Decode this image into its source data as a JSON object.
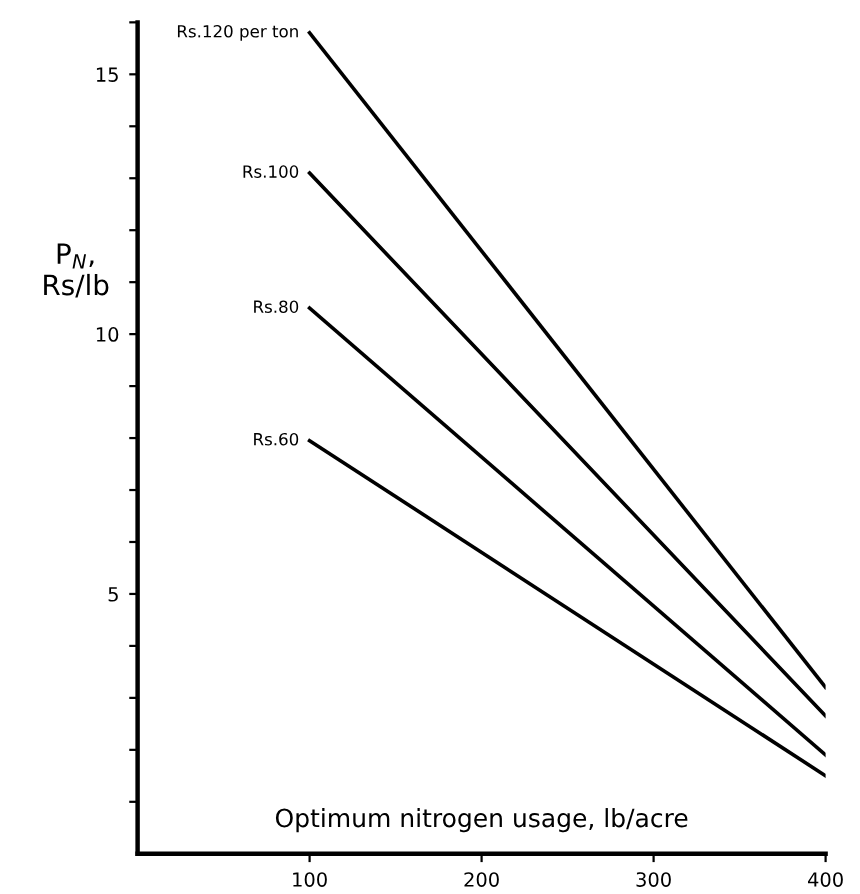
{
  "chart_data": {
    "type": "line",
    "xlabel": "Optimum nitrogen usage, lb/acre",
    "ylabel": "P$_{N}$,\nRs/lb",
    "x": [
      100,
      400
    ],
    "series": [
      {
        "name": "Rs.120 per ton",
        "color": "#000000",
        "values": [
          15.8,
          3.2
        ]
      },
      {
        "name": "Rs.100",
        "color": "#000000",
        "values": [
          13.1,
          2.65
        ]
      },
      {
        "name": "Rs.80",
        "color": "#000000",
        "values": [
          10.5,
          1.9
        ]
      },
      {
        "name": "Rs.60",
        "color": "#000000",
        "values": [
          7.95,
          1.5
        ]
      }
    ],
    "xlim": [
      0,
      400
    ],
    "ylim": [
      0,
      16
    ],
    "xticks": [
      100,
      200,
      300,
      400
    ],
    "yticks": [
      {
        "value": 1,
        "label": null
      },
      {
        "value": 2,
        "label": null
      },
      {
        "value": 3,
        "label": null
      },
      {
        "value": 4,
        "label": null
      },
      5,
      {
        "value": 6,
        "label": null
      },
      {
        "value": 7,
        "label": null
      },
      {
        "value": 8,
        "label": null
      },
      {
        "value": 9,
        "label": null
      },
      10,
      {
        "value": 11,
        "label": null
      },
      {
        "value": 12,
        "label": null
      },
      {
        "value": 13,
        "label": null
      },
      {
        "value": 14,
        "label": null
      },
      15,
      {
        "value": 16,
        "label": null
      }
    ],
    "grid": false,
    "legend": false,
    "marker": "none",
    "line_style": "solid"
  }
}
